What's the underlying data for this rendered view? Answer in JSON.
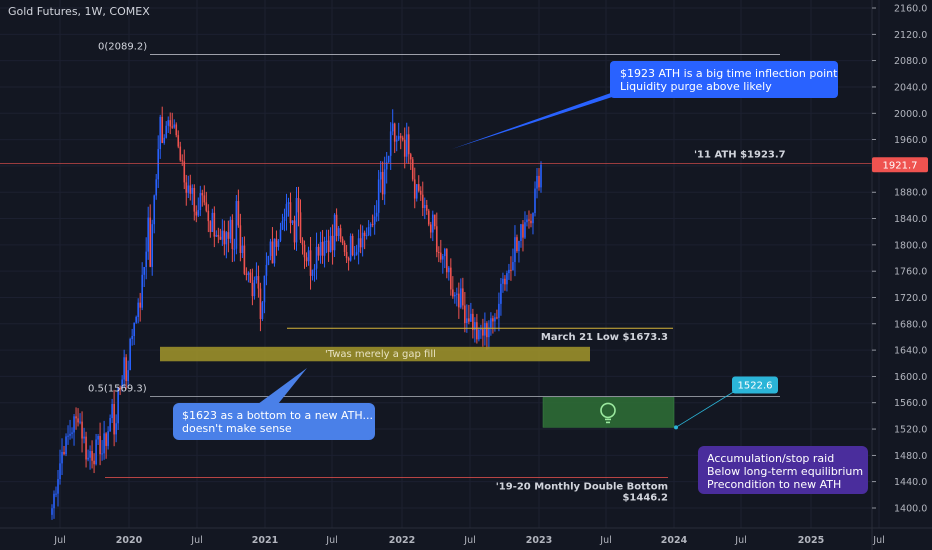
{
  "header": {
    "symbol_label": "Gold Futures, 1W, COMEX"
  },
  "colors": {
    "background": "#131722",
    "grid": "#1f2330",
    "up": "#2962ff",
    "down": "#ef5350",
    "axis_text": "#b2b5be",
    "callout_blue": "#2962ff",
    "callout_light": "#4a80e8",
    "callout_purple": "#4a2d9c",
    "yellow_zone": "#a3962a",
    "green_zone": "#2e6b35",
    "price_tag_red": "#ef5350",
    "price_tag_cyan": "#2bb5d8"
  },
  "chart_data": {
    "type": "candlestick",
    "x_tick_labels": [
      "Jul",
      "2020",
      "Jul",
      "2021",
      "Jul",
      "2022",
      "Jul",
      "2023",
      "Jul",
      "2024",
      "Jul",
      "2025",
      "Jul"
    ],
    "y_tick_labels": [
      "2160.0",
      "2120.0",
      "2080.0",
      "2040.0",
      "2000.0",
      "1960.0",
      "1920.0",
      "1880.0",
      "1840.0",
      "1800.0",
      "1760.0",
      "1720.0",
      "1680.0",
      "1640.0",
      "1600.0",
      "1560.0",
      "1520.0",
      "1480.0",
      "1440.0",
      "1400.0"
    ],
    "y_ticks": [
      2160,
      2120,
      2080,
      2040,
      2000,
      1960,
      1920,
      1880,
      1840,
      1800,
      1760,
      1720,
      1680,
      1640,
      1600,
      1560,
      1520,
      1480,
      1440,
      1400
    ],
    "ylim": [
      1380,
      2180
    ],
    "series_anchor_closes": [
      [
        1400,
        1440
      ],
      [
        1480,
        1500
      ],
      [
        1560,
        1530
      ],
      [
        1490,
        1470
      ],
      [
        1480,
        1500
      ],
      [
        1510,
        1560
      ],
      [
        1590,
        1640
      ],
      [
        1690,
        1720
      ],
      [
        1760,
        1870
      ],
      [
        1970,
        2030
      ],
      [
        1990,
        1940
      ],
      [
        1910,
        1880
      ],
      [
        1870,
        1840
      ],
      [
        1860,
        1810
      ],
      [
        1780,
        1830
      ],
      [
        1880,
        1790
      ],
      [
        1760,
        1730
      ],
      [
        1700,
        1750
      ],
      [
        1780,
        1800
      ],
      [
        1840,
        1870
      ],
      [
        1880,
        1800
      ],
      [
        1760,
        1780
      ],
      [
        1790,
        1810
      ],
      [
        1850,
        1790
      ],
      [
        1780,
        1800
      ],
      [
        1820,
        1800
      ],
      [
        1810,
        1830
      ],
      [
        1870,
        1920
      ],
      [
        1960,
        1980
      ],
      [
        1950,
        1920
      ],
      [
        1880,
        1860
      ],
      [
        1840,
        1820
      ],
      [
        1800,
        1760
      ],
      [
        1740,
        1720
      ],
      [
        1700,
        1690
      ],
      [
        1670,
        1650
      ],
      [
        1660,
        1700
      ],
      [
        1740,
        1770
      ],
      [
        1790,
        1810
      ],
      [
        1840,
        1860
      ],
      [
        1880,
        1923
      ]
    ],
    "annotations": {
      "fib_0_label": "0(2089.2)",
      "fib_0_value": 2089.2,
      "fib_05_label": "0.5(1569.3)",
      "fib_05_value": 1569.3,
      "ath_label": "'11 ATH $1923.7",
      "ath_value": 1923.7,
      "march_low_label": "March 21 Low $1673.3",
      "march_low_value": 1673.3,
      "double_bottom_label_1": "'19-20 Monthly Double Bottom",
      "double_bottom_label_2": "$1446.2",
      "double_bottom_value": 1446.2,
      "gap_fill_label": "'Twas merely a gap fill",
      "gap_fill_range": [
        1623,
        1645
      ],
      "green_zone_range": [
        1522.6,
        1568
      ]
    },
    "price_tags": {
      "current": "1921.7",
      "current_value": 1921.7,
      "target": "1522.6",
      "target_value": 1522.6
    }
  },
  "callouts": {
    "top_line1": "$1923 ATH is a big time inflection point",
    "top_line2": "Liquidity purge above likely",
    "left_line1": "$1623 as a bottom to a new ATH...",
    "left_line2": "doesn't make sense",
    "right_line1": "Accumulation/stop raid",
    "right_line2": "Below long-term equilibrium",
    "right_line3": "Precondition to new ATH"
  },
  "icons": {
    "zone_icon": "lightbulb-icon"
  }
}
